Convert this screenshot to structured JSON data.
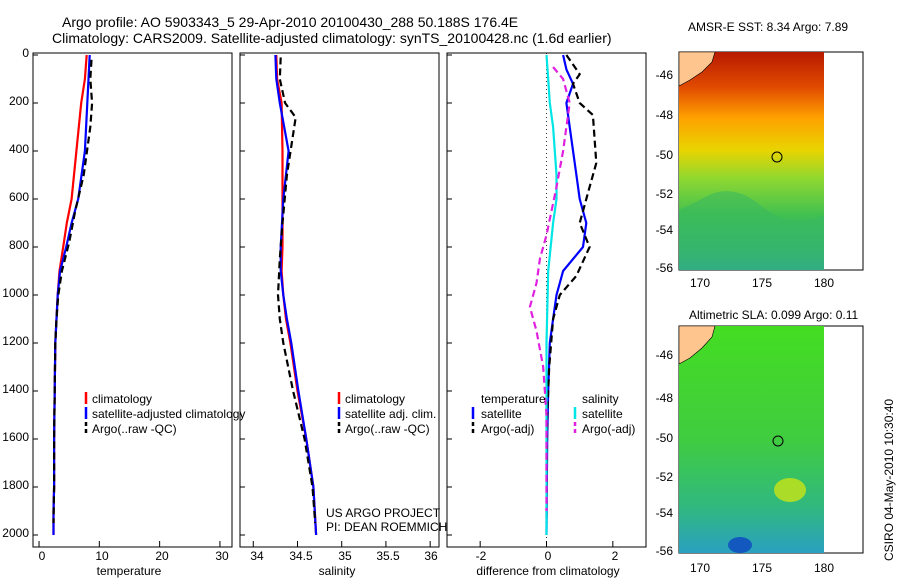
{
  "title": {
    "line1": "Argo profile: AO 5903343_5 29-Apr-2010 20100430_288 50.188S 176.4E",
    "line2": "Climatology: CARS2009. Satellite-adjusted climatology: synTS_20100428.nc (1.6d earlier)"
  },
  "colors": {
    "climatology": "#ff0000",
    "satellite": "#0000ff",
    "argo": "#000000",
    "sal_sat": "#00e5e5",
    "sal_argo": "#e020e0"
  },
  "project": {
    "line1": "US ARGO PROJECT",
    "line2": "PI: DEAN ROEMMICH"
  },
  "timestamp": "CSIRO 04-May-2010 10:30:40",
  "chart_data": [
    {
      "type": "line",
      "id": "temperature",
      "xlabel": "temperature",
      "ylabel": "",
      "xlim": [
        -1,
        32
      ],
      "ylim": [
        2050,
        0
      ],
      "xticks": [
        0,
        10,
        20,
        30
      ],
      "yticks": [
        0,
        200,
        400,
        600,
        800,
        1000,
        1200,
        1400,
        1600,
        1800,
        2000
      ],
      "legend": [
        "climatology",
        "satellite-adjusted climatology",
        "Argo(..raw -QC)"
      ],
      "series": [
        {
          "name": "climatology",
          "style": "solid",
          "color": "#ff0000",
          "x": [
            7.9,
            7.6,
            7.0,
            6.2,
            5.4,
            4.6,
            4.0,
            3.4,
            3.1,
            2.9,
            2.7,
            2.6,
            2.5,
            2.5,
            2.4,
            2.4
          ],
          "y": [
            0,
            100,
            200,
            400,
            600,
            700,
            800,
            900,
            1000,
            1100,
            1200,
            1400,
            1600,
            1800,
            1900,
            2000
          ]
        },
        {
          "name": "satellite-adjusted climatology",
          "style": "solid",
          "color": "#0000ff",
          "x": [
            8.4,
            8.2,
            8.0,
            7.6,
            6.5,
            5.4,
            4.5,
            3.5,
            3.1,
            2.9,
            2.7,
            2.6,
            2.5,
            2.5,
            2.4,
            2.4
          ],
          "y": [
            0,
            100,
            200,
            400,
            600,
            700,
            800,
            900,
            1000,
            1100,
            1200,
            1400,
            1600,
            1800,
            1900,
            2000
          ]
        },
        {
          "name": "Argo(..raw -QC)",
          "style": "dashed",
          "color": "#000000",
          "x": [
            8.7,
            8.5,
            8.8,
            8.5,
            7.4,
            6.0,
            5.0,
            3.8,
            3.2,
            2.9,
            2.7,
            2.6,
            2.5,
            2.5,
            2.4
          ],
          "y": [
            20,
            100,
            200,
            300,
            500,
            650,
            780,
            900,
            1000,
            1100,
            1200,
            1400,
            1600,
            1800,
            1950
          ]
        }
      ]
    },
    {
      "type": "line",
      "id": "salinity",
      "xlabel": "salinity",
      "ylabel": "",
      "xlim": [
        33.85,
        36.1
      ],
      "ylim": [
        2050,
        0
      ],
      "xticks": [
        34,
        34.5,
        35,
        35.5,
        36
      ],
      "legend": [
        "climatology",
        "satellite adj. clim.",
        "Argo(..raw -QC)"
      ],
      "series": [
        {
          "name": "climatology",
          "style": "solid",
          "color": "#ff0000",
          "x": [
            34.26,
            34.27,
            34.32,
            34.33,
            34.33,
            34.33,
            34.32,
            34.34,
            34.37,
            34.42,
            34.5,
            34.6,
            34.68,
            34.71
          ],
          "y": [
            0,
            100,
            200,
            400,
            600,
            800,
            900,
            1000,
            1100,
            1200,
            1400,
            1600,
            1800,
            2000
          ]
        },
        {
          "name": "satellite adj. clim.",
          "style": "solid",
          "color": "#0000ff",
          "x": [
            34.25,
            34.26,
            34.3,
            34.4,
            34.34,
            34.31,
            34.31,
            34.34,
            34.38,
            34.43,
            34.51,
            34.6,
            34.68,
            34.71
          ],
          "y": [
            0,
            100,
            200,
            400,
            600,
            800,
            900,
            1000,
            1100,
            1200,
            1400,
            1600,
            1800,
            2000
          ]
        },
        {
          "name": "Argo(..raw -QC)",
          "style": "dashed",
          "color": "#000000",
          "x": [
            34.31,
            34.3,
            34.36,
            34.48,
            34.38,
            34.33,
            34.3,
            34.28,
            34.3,
            34.34,
            34.45,
            34.58,
            34.67,
            34.7
          ],
          "y": [
            10,
            100,
            200,
            260,
            500,
            700,
            850,
            1000,
            1100,
            1200,
            1400,
            1600,
            1800,
            1950
          ]
        }
      ]
    },
    {
      "type": "line",
      "id": "difference",
      "xlabel": "difference from climatology",
      "ylabel": "",
      "xlim": [
        -3,
        3
      ],
      "ylim": [
        2050,
        0
      ],
      "xticks": [
        -2,
        0,
        2
      ],
      "legend": [
        "temperature",
        "satellite",
        "Argo(-adj)",
        "salinity",
        "satellite",
        "Argo(-adj)"
      ],
      "series": [
        {
          "name": "temperature satellite",
          "style": "solid",
          "color": "#0000ff",
          "x": [
            0.5,
            0.6,
            0.8,
            0.6,
            0.7,
            0.9,
            1.0,
            1.2,
            1.1,
            0.5,
            0.3,
            0.2,
            0.1,
            0.05,
            0.02,
            0.01,
            0
          ],
          "y": [
            0,
            60,
            120,
            200,
            300,
            500,
            600,
            700,
            800,
            900,
            1000,
            1100,
            1200,
            1400,
            1600,
            1800,
            2000
          ]
        },
        {
          "name": "temperature Argo(-adj)",
          "style": "dashed",
          "color": "#000000",
          "x": [
            0.6,
            1.0,
            0.8,
            1.0,
            1.4,
            1.5,
            1.3,
            1.0,
            1.3,
            0.9,
            0.4,
            0.2,
            0.08,
            0.02,
            0.01,
            0
          ],
          "y": [
            0,
            80,
            120,
            200,
            250,
            450,
            550,
            700,
            800,
            920,
            1000,
            1100,
            1300,
            1500,
            1700,
            1950
          ]
        },
        {
          "name": "salinity satellite",
          "style": "solid",
          "color": "#00e5e5",
          "x": [
            0,
            0.05,
            0.1,
            0.2,
            0.3,
            0.3,
            0.2,
            0.05,
            0,
            0
          ],
          "y": [
            0,
            100,
            200,
            300,
            500,
            600,
            700,
            900,
            1200,
            2000
          ]
        },
        {
          "name": "salinity Argo(-adj)",
          "style": "dashed",
          "color": "#e020e0",
          "x": [
            0.2,
            0.5,
            0.7,
            0.6,
            0.5,
            0.3,
            0.0,
            -0.2,
            -0.3,
            -0.5,
            -0.3,
            -0.1,
            0,
            0
          ],
          "y": [
            50,
            100,
            200,
            300,
            400,
            550,
            750,
            850,
            950,
            1050,
            1150,
            1300,
            1500,
            1900
          ]
        }
      ]
    }
  ],
  "maps": [
    {
      "title": "AMSR-E SST: 8.34 Argo: 7.89",
      "xticks": [
        "170",
        "175",
        "180"
      ],
      "yticks": [
        "-46",
        "-48",
        "-50",
        "-52",
        "-54",
        "-56"
      ]
    },
    {
      "title": "Altimetric SLA: 0.099 Argo: 0.11",
      "xticks": [
        "170",
        "175",
        "180"
      ],
      "yticks": [
        "-46",
        "-48",
        "-50",
        "-52",
        "-54",
        "-56"
      ]
    }
  ],
  "axis_numbers": {
    "depth": [
      "0",
      "200",
      "400",
      "600",
      "800",
      "1000",
      "1200",
      "1400",
      "1600",
      "1800",
      "2000"
    ],
    "temperature": [
      "0",
      "10",
      "20",
      "30"
    ],
    "salinity": [
      "34",
      "34.5",
      "35",
      "35.5",
      "36"
    ],
    "difference": [
      "-2",
      "0",
      "2"
    ]
  }
}
